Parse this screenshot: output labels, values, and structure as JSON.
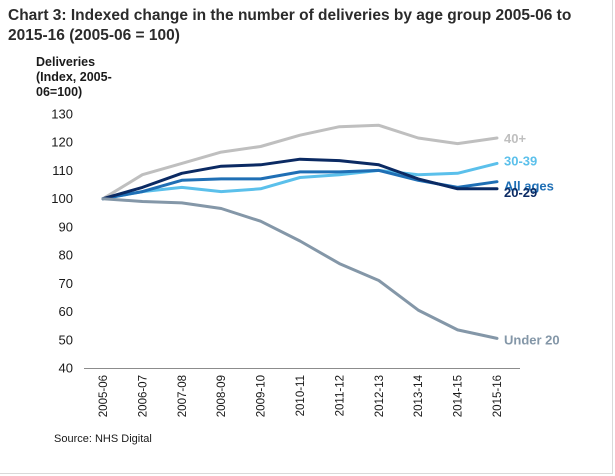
{
  "chart_data": {
    "type": "line",
    "title": "Chart 3: Indexed change in the number of deliveries by age group 2005-06 to 2015-16 (2005-06 = 100)",
    "ylabel": "Deliveries (Index, 2005-06=100)",
    "xlabel": "",
    "source": "Source: NHS Digital",
    "ylim": [
      40,
      130
    ],
    "yticks": [
      40,
      50,
      60,
      70,
      80,
      90,
      100,
      110,
      120,
      130
    ],
    "grid": false,
    "categories": [
      "2005-06",
      "2006-07",
      "2007-08",
      "2008-09",
      "2009-10",
      "2010-11",
      "2011-12",
      "2012-13",
      "2013-14",
      "2014-15",
      "2015-16"
    ],
    "series": [
      {
        "name": "40+",
        "color": "#bfbfbf",
        "values": [
          100,
          108.5,
          112.5,
          116.5,
          118.5,
          122.5,
          125.5,
          126,
          121.5,
          119.5,
          121.5
        ]
      },
      {
        "name": "30-39",
        "color": "#5bc0eb",
        "values": [
          100,
          102.5,
          104,
          102.5,
          103.5,
          107.5,
          108.5,
          110,
          108.5,
          109,
          112.5
        ]
      },
      {
        "name": "All ages",
        "color": "#1f6fb5",
        "values": [
          100,
          102.5,
          106.5,
          107,
          107,
          109.5,
          109.5,
          110,
          106.5,
          104,
          106
        ]
      },
      {
        "name": "20-29",
        "color": "#0b2a63",
        "values": [
          100,
          104,
          109,
          111.5,
          112,
          114,
          113.5,
          112,
          107,
          103.5,
          103.5
        ]
      },
      {
        "name": "Under 20",
        "color": "#8497a8",
        "values": [
          100,
          99,
          98.5,
          96.5,
          92,
          85,
          77,
          71,
          60.5,
          53.5,
          50.5
        ]
      }
    ]
  }
}
